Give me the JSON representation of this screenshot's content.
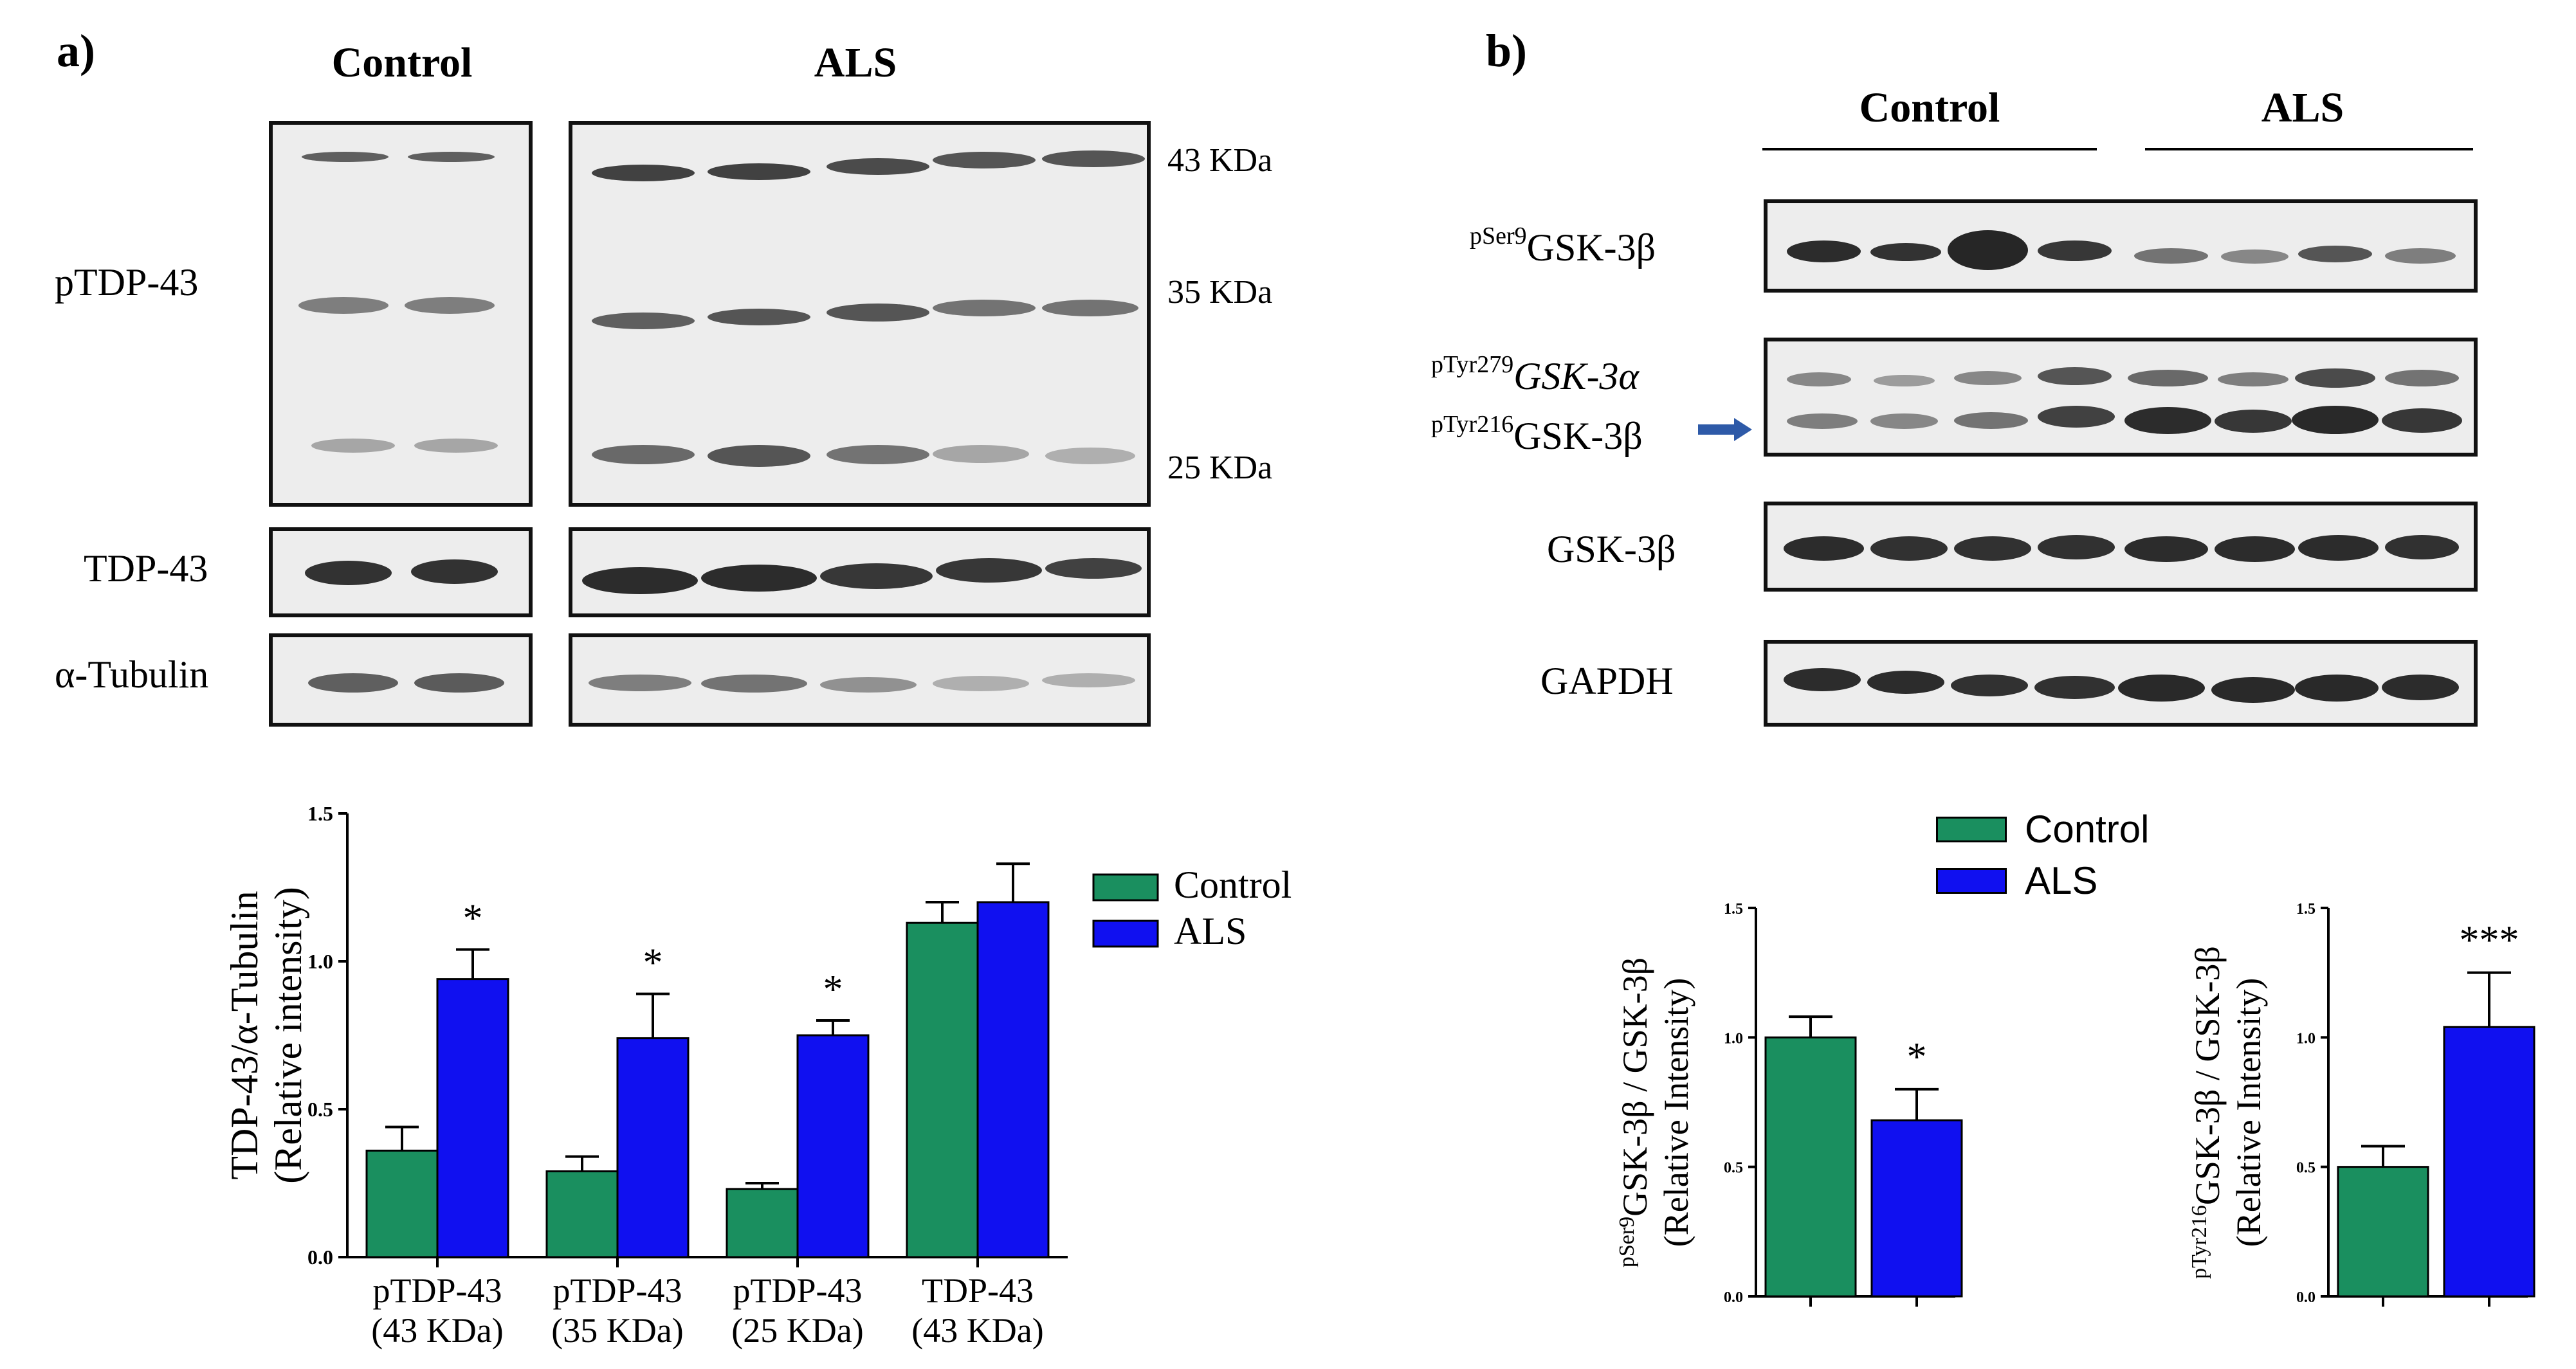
{
  "panel_a": {
    "letter": "a)",
    "group_control": "Control",
    "group_als": "ALS",
    "row_labels": {
      "ptdp": "pTDP-43",
      "tdp": "TDP-43",
      "tubulin": "α-Tubulin"
    },
    "markers": [
      "43 KDa",
      "35 KDa",
      "25 KDa"
    ]
  },
  "panel_b": {
    "letter": "b)",
    "group_control": "Control",
    "group_als": "ALS",
    "row_labels": {
      "pser9_sup": "pSer9",
      "pser9_main": "GSK-3β",
      "ptyr279_sup": "pTyr279",
      "ptyr279_main": "GSK-3α",
      "ptyr216_sup": "pTyr216",
      "ptyr216_main": "GSK-3β",
      "gsk": "GSK-3β",
      "gapdh": "GAPDH"
    }
  },
  "colors": {
    "control": "#1a8f5f",
    "als": "#1010f0",
    "arrow": "#2e5aa8"
  },
  "chart_data": [
    {
      "type": "bar",
      "id": "chart-a",
      "categories": [
        "pTDP-43\n(43 KDa)",
        "pTDP-43\n(35 KDa)",
        "pTDP-43\n(25 KDa)",
        "TDP-43\n(43 KDa)"
      ],
      "category_lines": [
        [
          "pTDP-43",
          "(43 KDa)"
        ],
        [
          "pTDP-43",
          "(35 KDa)"
        ],
        [
          "pTDP-43",
          "(25 KDa)"
        ],
        [
          "TDP-43",
          "(43 KDa)"
        ]
      ],
      "series": [
        {
          "name": "Control",
          "values": [
            0.36,
            0.29,
            0.23,
            1.13
          ],
          "errors": [
            0.08,
            0.05,
            0.02,
            0.07
          ]
        },
        {
          "name": "ALS",
          "values": [
            0.94,
            0.74,
            0.75,
            1.2
          ],
          "errors": [
            0.1,
            0.15,
            0.05,
            0.13
          ]
        }
      ],
      "significance": [
        "*",
        "*",
        "*",
        ""
      ],
      "ylabel_lines": [
        "TDP-43/α-Tubulin",
        "(Relative intensity)"
      ],
      "ylim": [
        0,
        1.5
      ],
      "yticks": [
        "0.0",
        "0.5",
        "1.0",
        "1.5"
      ],
      "legend": [
        "Control",
        "ALS"
      ],
      "legend_position": "right"
    },
    {
      "type": "bar",
      "id": "chart-b1",
      "categories": [
        "Control",
        "ALS"
      ],
      "values": [
        1.0,
        0.68
      ],
      "errors": [
        0.08,
        0.12
      ],
      "significance": [
        "",
        "*"
      ],
      "ylabel_sup": "pSer9",
      "ylabel_lines": [
        "GSK-3β / GSK-3β",
        "(Relative Intensity)"
      ],
      "ylim": [
        0,
        1.5
      ],
      "yticks": [
        "0.0",
        "0.5",
        "1.0",
        "1.5"
      ]
    },
    {
      "type": "bar",
      "id": "chart-b2",
      "categories": [
        "Control",
        "ALS"
      ],
      "values": [
        0.5,
        1.04
      ],
      "errors": [
        0.08,
        0.21
      ],
      "significance": [
        "",
        "***"
      ],
      "ylabel_sup": "pTyr216",
      "ylabel_lines": [
        "GSK-3β / GSK-3β",
        "(Relative Intensity)"
      ],
      "ylim": [
        0,
        1.5
      ],
      "yticks": [
        "0.0",
        "0.5",
        "1.0",
        "1.5"
      ]
    }
  ],
  "legend_b": [
    "Control",
    "ALS"
  ]
}
